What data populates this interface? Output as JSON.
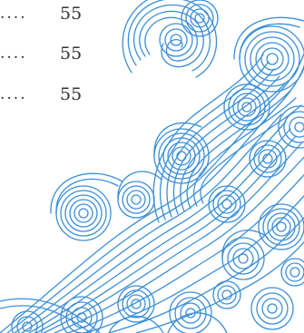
{
  "toc": {
    "entries": [
      {
        "leader": "....",
        "page": "55"
      },
      {
        "leader": "....",
        "page": "55"
      },
      {
        "leader": "....",
        "page": "55"
      }
    ]
  },
  "decoration": {
    "icon": "ocean-wave-swirl-pattern",
    "stroke_color": "#3b8fd8",
    "background_color": "#ffffff"
  }
}
